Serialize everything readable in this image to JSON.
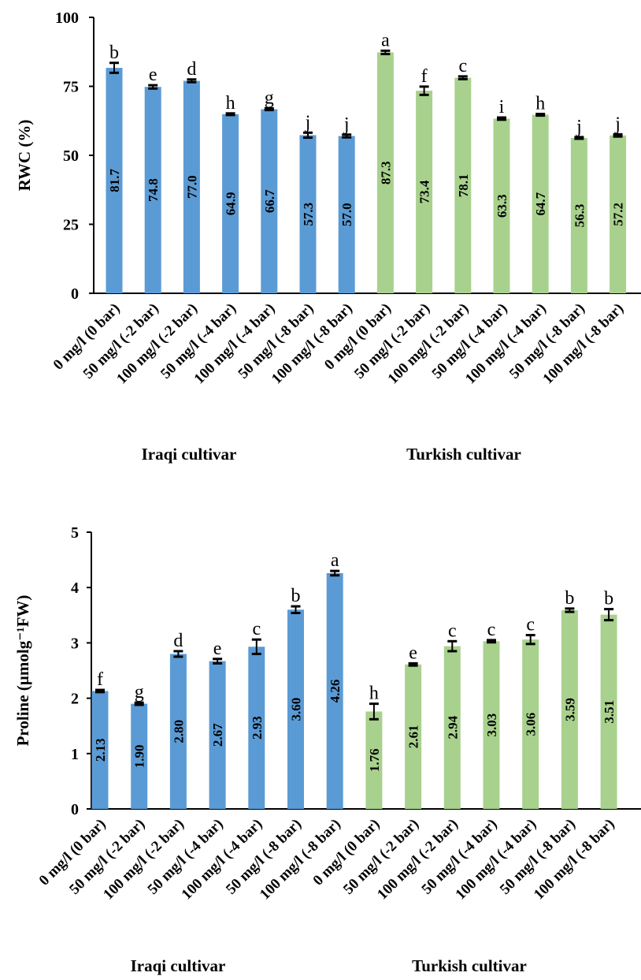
{
  "colors": {
    "iraqi": "#5b9bd5",
    "turkish": "#a9d18e",
    "axis": "#000000",
    "error_bar": "#000000"
  },
  "chart_data": [
    {
      "type": "bar",
      "ylabel": "RWC (%)",
      "ylim": [
        0,
        100
      ],
      "yticks": [
        "0",
        "25",
        "50",
        "75",
        "100"
      ],
      "grid": false,
      "groups": [
        "Iraqi cultivar",
        "Turkish cultivar"
      ],
      "categories": [
        "0 mg/l (0 bar)",
        "50 mg/l (-2 bar)",
        "100 mg/l (-2 bar)",
        "50 mg/l (-4 bar)",
        "100 mg/l (-4 bar)",
        "50 mg/l (-8 bar)",
        "100 mg/l (-8 bar)",
        "0 mg/l (0 bar)",
        "50 mg/l (-2 bar)",
        "100 mg/l (-2 bar)",
        "50 mg/l (-4 bar)",
        "100 mg/l (-4 bar)",
        "50 mg/l (-8 bar)",
        "100 mg/l (-8 bar)"
      ],
      "values": [
        81.7,
        74.8,
        77.0,
        64.9,
        66.7,
        57.3,
        57.0,
        87.3,
        73.4,
        78.1,
        63.3,
        64.7,
        56.3,
        57.2
      ],
      "value_labels": [
        "81.7",
        "74.8",
        "77.0",
        "64.9",
        "66.7",
        "57.3",
        "57.0",
        "87.3",
        "73.4",
        "78.1",
        "63.3",
        "64.7",
        "56.3",
        "57.2"
      ],
      "errors": [
        1.8,
        0.6,
        0.5,
        0.3,
        0.3,
        0.9,
        0.5,
        0.6,
        1.5,
        0.5,
        0.4,
        0.3,
        0.3,
        0.4
      ],
      "letters": [
        "b",
        "e",
        "d",
        "h",
        "g",
        "j",
        "j",
        "a",
        "f",
        "c",
        "i",
        "h",
        "j",
        "j"
      ],
      "series_group": [
        0,
        0,
        0,
        0,
        0,
        0,
        0,
        1,
        1,
        1,
        1,
        1,
        1,
        1
      ]
    },
    {
      "type": "bar",
      "ylabel": "Proline (µmolg⁻¹FW)",
      "ylim": [
        0,
        5
      ],
      "yticks": [
        "0",
        "1",
        "2",
        "3",
        "4",
        "5"
      ],
      "grid": false,
      "groups": [
        "Iraqi cultivar",
        "Turkish cultivar"
      ],
      "categories": [
        "0 mg/l (0 bar)",
        "50 mg/l (-2 bar)",
        "100 mg/l (-2 bar)",
        "50 mg/l (-4 bar)",
        "100 mg/l (-4 bar)",
        "50 mg/l (-8 bar)",
        "100 mg/l (-8 bar)",
        "0 mg/l (0 bar)",
        "50 mg/l (-2 bar)",
        "100 mg/l (-2 bar)",
        "50 mg/l (-4 bar)",
        "100 mg/l (-4 bar)",
        "50 mg/l (-8 bar)",
        "100 mg/l (-8 bar)"
      ],
      "values": [
        2.13,
        1.9,
        2.8,
        2.67,
        2.93,
        3.6,
        4.26,
        1.76,
        2.61,
        2.94,
        3.03,
        3.06,
        3.59,
        3.51
      ],
      "value_labels": [
        "2.13",
        "1.90",
        "2.80",
        "2.67",
        "2.93",
        "3.60",
        "4.26",
        "1.76",
        "2.61",
        "2.94",
        "3.03",
        "3.06",
        "3.59",
        "3.51"
      ],
      "errors": [
        0.02,
        0.02,
        0.05,
        0.04,
        0.13,
        0.06,
        0.04,
        0.14,
        0.02,
        0.09,
        0.02,
        0.08,
        0.03,
        0.1
      ],
      "letters": [
        "f",
        "g",
        "d",
        "e",
        "c",
        "b",
        "a",
        "h",
        "e",
        "c",
        "c",
        "c",
        "b",
        "b"
      ],
      "series_group": [
        0,
        0,
        0,
        0,
        0,
        0,
        0,
        1,
        1,
        1,
        1,
        1,
        1,
        1
      ]
    }
  ]
}
